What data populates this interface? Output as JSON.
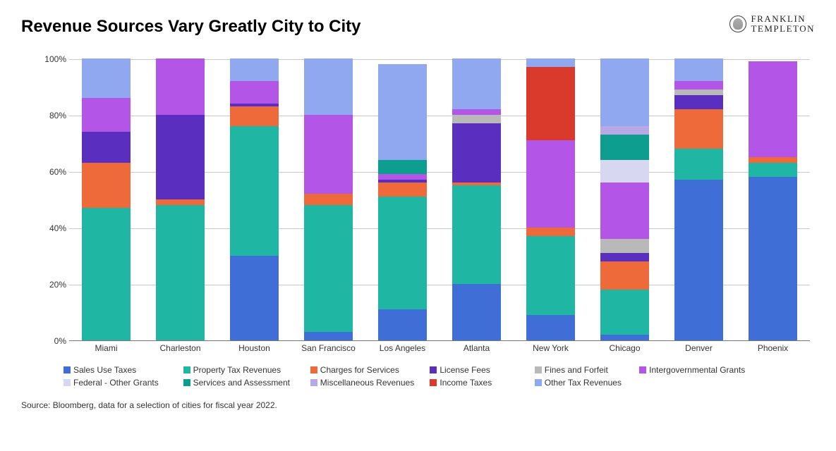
{
  "title": "Revenue Sources Vary Greatly City to City",
  "logo": {
    "line1": "FRANKLIN",
    "line2": "TEMPLETON"
  },
  "source_note": "Source: Bloomberg, data for a selection of cities for fiscal year 2022.",
  "chart": {
    "type": "stacked-bar",
    "background_color": "#ffffff",
    "grid_color": "#c9c9c9",
    "axis_color": "#777777",
    "title_fontsize": 24,
    "label_fontsize": 12,
    "ylim": [
      0,
      100
    ],
    "ytick_step": 20,
    "yticks": [
      "0%",
      "20%",
      "40%",
      "60%",
      "80%",
      "100%"
    ],
    "bar_width_pct": 66,
    "series": [
      {
        "key": "sales_use_taxes",
        "label": "Sales Use Taxes",
        "color": "#3f6fd6"
      },
      {
        "key": "property_tax_revenues",
        "label": "Property Tax Revenues",
        "color": "#1fb6a3"
      },
      {
        "key": "charges_for_services",
        "label": "Charges for Services",
        "color": "#ef6a3a"
      },
      {
        "key": "license_fees",
        "label": "License Fees",
        "color": "#5a2fbf"
      },
      {
        "key": "fines_and_forfeit",
        "label": "Fines and Forfeit",
        "color": "#b9b9b9"
      },
      {
        "key": "intergovernmental_grants",
        "label": "Intergovernmental Grants",
        "color": "#b355e6"
      },
      {
        "key": "federal_other_grants",
        "label": "Federal - Other Grants",
        "color": "#d7d7f2"
      },
      {
        "key": "services_and_assessment",
        "label": "Services and Assessment",
        "color": "#0e9e8f"
      },
      {
        "key": "miscellaneous_revenues",
        "label": "Miscellaneous Revenues",
        "color": "#b9a8e6"
      },
      {
        "key": "income_taxes",
        "label": "Income Taxes",
        "color": "#d93a2b"
      },
      {
        "key": "other_tax_revenues",
        "label": "Other Tax Revenues",
        "color": "#8fa8ef"
      }
    ],
    "legend_item_widths_pct": [
      16,
      17,
      16,
      14,
      14,
      23,
      16,
      17,
      16,
      14,
      20
    ],
    "categories": [
      {
        "label": "Miami",
        "values": {
          "sales_use_taxes": 0,
          "property_tax_revenues": 47,
          "charges_for_services": 16,
          "license_fees": 11,
          "fines_and_forfeit": 0,
          "intergovernmental_grants": 12,
          "federal_other_grants": 0,
          "services_and_assessment": 0,
          "miscellaneous_revenues": 0,
          "income_taxes": 0,
          "other_tax_revenues": 14
        }
      },
      {
        "label": "Charleston",
        "values": {
          "sales_use_taxes": 0,
          "property_tax_revenues": 48,
          "charges_for_services": 2,
          "license_fees": 30,
          "fines_and_forfeit": 0,
          "intergovernmental_grants": 20,
          "federal_other_grants": 0,
          "services_and_assessment": 0,
          "miscellaneous_revenues": 0,
          "income_taxes": 0,
          "other_tax_revenues": 0
        }
      },
      {
        "label": "Houston",
        "values": {
          "sales_use_taxes": 30,
          "property_tax_revenues": 46,
          "charges_for_services": 7,
          "license_fees": 1,
          "fines_and_forfeit": 0,
          "intergovernmental_grants": 8,
          "federal_other_grants": 0,
          "services_and_assessment": 0,
          "miscellaneous_revenues": 0,
          "income_taxes": 0,
          "other_tax_revenues": 8
        }
      },
      {
        "label": "San Francisco",
        "values": {
          "sales_use_taxes": 3,
          "property_tax_revenues": 45,
          "charges_for_services": 4,
          "license_fees": 0,
          "fines_and_forfeit": 0,
          "intergovernmental_grants": 28,
          "federal_other_grants": 0,
          "services_and_assessment": 0,
          "miscellaneous_revenues": 0,
          "income_taxes": 0,
          "other_tax_revenues": 20
        }
      },
      {
        "label": "Los Angeles",
        "values": {
          "sales_use_taxes": 11,
          "property_tax_revenues": 40,
          "charges_for_services": 5,
          "license_fees": 1,
          "fines_and_forfeit": 0,
          "intergovernmental_grants": 2,
          "federal_other_grants": 0,
          "services_and_assessment": 5,
          "miscellaneous_revenues": 0,
          "income_taxes": 0,
          "other_tax_revenues": 34
        }
      },
      {
        "label": "Atlanta",
        "values": {
          "sales_use_taxes": 20,
          "property_tax_revenues": 35,
          "charges_for_services": 1,
          "license_fees": 21,
          "fines_and_forfeit": 3,
          "intergovernmental_grants": 2,
          "federal_other_grants": 0,
          "services_and_assessment": 0,
          "miscellaneous_revenues": 0,
          "income_taxes": 0,
          "other_tax_revenues": 18
        }
      },
      {
        "label": "New York",
        "values": {
          "sales_use_taxes": 9,
          "property_tax_revenues": 28,
          "charges_for_services": 3,
          "license_fees": 0,
          "fines_and_forfeit": 0,
          "intergovernmental_grants": 31,
          "federal_other_grants": 0,
          "services_and_assessment": 0,
          "miscellaneous_revenues": 0,
          "income_taxes": 26,
          "other_tax_revenues": 3
        }
      },
      {
        "label": "Chicago",
        "values": {
          "sales_use_taxes": 2,
          "property_tax_revenues": 16,
          "charges_for_services": 10,
          "license_fees": 3,
          "fines_and_forfeit": 5,
          "intergovernmental_grants": 20,
          "federal_other_grants": 8,
          "services_and_assessment": 9,
          "miscellaneous_revenues": 3,
          "income_taxes": 0,
          "other_tax_revenues": 24
        }
      },
      {
        "label": "Denver",
        "values": {
          "sales_use_taxes": 57,
          "property_tax_revenues": 11,
          "charges_for_services": 14,
          "license_fees": 5,
          "fines_and_forfeit": 2,
          "intergovernmental_grants": 3,
          "federal_other_grants": 0,
          "services_and_assessment": 0,
          "miscellaneous_revenues": 0,
          "income_taxes": 0,
          "other_tax_revenues": 8
        }
      },
      {
        "label": "Phoenix",
        "values": {
          "sales_use_taxes": 58,
          "property_tax_revenues": 5,
          "charges_for_services": 2,
          "license_fees": 0,
          "fines_and_forfeit": 0,
          "intergovernmental_grants": 34,
          "federal_other_grants": 0,
          "services_and_assessment": 0,
          "miscellaneous_revenues": 0,
          "income_taxes": 0,
          "other_tax_revenues": 0
        }
      }
    ]
  }
}
